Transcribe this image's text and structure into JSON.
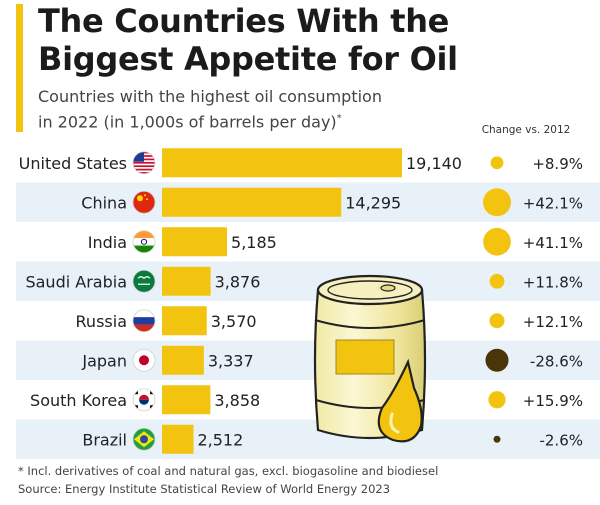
{
  "title_line1": "The Countries With the",
  "title_line2": "Biggest Appetite for Oil",
  "subtitle_line1": "Countries with the highest oil consumption",
  "subtitle_line2": "in 2022 (in 1,000s of barrels per day)",
  "subtitle_marker": "*",
  "change_header": "Change vs. 2012",
  "footnote": "* Incl. derivatives of coal and natural gas, excl. biogasoline and biodiesel",
  "source": "Source: Energy Institute Statistical Review of World Energy 2023",
  "colors": {
    "bar": "#F2C40F",
    "positive_change": "#F2C40F",
    "negative_change": "#4A3508",
    "stripe": "#E8F1F8"
  },
  "chart_data": {
    "type": "bar",
    "orientation": "horizontal",
    "categories": [
      "United States",
      "China",
      "India",
      "Saudi Arabia",
      "Russia",
      "Japan",
      "South Korea",
      "Brazil"
    ],
    "values": [
      19140,
      14295,
      5185,
      3876,
      3570,
      3337,
      3858,
      2512
    ],
    "value_labels": [
      "19,140",
      "14,295",
      "5,185",
      "3,876",
      "3,570",
      "3,337",
      "3,858",
      "2,512"
    ],
    "change_vs_2012": [
      8.9,
      42.1,
      41.1,
      11.8,
      12.1,
      -28.6,
      15.9,
      -2.6
    ],
    "change_labels": [
      "+8.9%",
      "+42.1%",
      "+41.1%",
      "+11.8%",
      "+12.1%",
      "-28.6%",
      "+15.9%",
      "-2.6%"
    ],
    "flag_icons": [
      "us-flag-icon",
      "china-flag-icon",
      "india-flag-icon",
      "saudi-arabia-flag-icon",
      "russia-flag-icon",
      "japan-flag-icon",
      "south-korea-flag-icon",
      "brazil-flag-icon"
    ]
  }
}
